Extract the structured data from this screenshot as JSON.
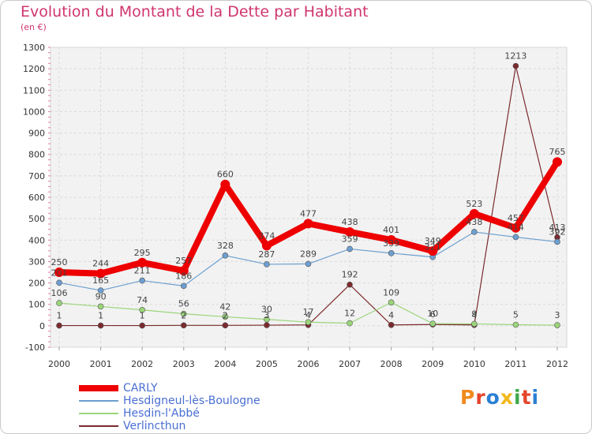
{
  "chart_data": {
    "type": "line",
    "title": "Evolution du Montant de la Dette par Habitant",
    "subtitle": "(en €)",
    "x": [
      "2000",
      "2001",
      "2002",
      "2003",
      "2004",
      "2005",
      "2006",
      "2007",
      "2008",
      "2009",
      "2010",
      "2011",
      "2012"
    ],
    "ylim": [
      -100,
      1300
    ],
    "yticks": [
      -100,
      0,
      100,
      200,
      300,
      400,
      500,
      600,
      700,
      800,
      900,
      1000,
      1100,
      1200,
      1300
    ],
    "ytick_labels": [
      "-100",
      "0",
      "100",
      "200",
      "300",
      "400",
      "500",
      "600",
      "700",
      "800",
      "900",
      "1000",
      "1100",
      "1200",
      "1300"
    ],
    "grid": true,
    "legend_position": "bottom-left",
    "series": [
      {
        "name": "CARLY",
        "color": "#ee0000",
        "values": [
          250,
          244,
          295,
          257,
          660,
          374,
          477,
          438,
          401,
          349,
          523,
          457,
          765
        ],
        "labels": [
          "250",
          "244",
          "295",
          "257",
          "660",
          "374",
          "477",
          "438",
          "401",
          "349",
          "523",
          "457",
          "765"
        ]
      },
      {
        "name": "Hesdigneul-lès-Boulogne",
        "color": "#6d9fd0",
        "values": [
          201,
          165,
          211,
          186,
          328,
          287,
          289,
          359,
          339,
          321,
          438,
          414,
          392
        ],
        "labels": [
          "201",
          "165",
          "211",
          "186",
          "328",
          "287",
          "289",
          "359",
          "339",
          "321",
          "438",
          "414",
          "392"
        ]
      },
      {
        "name": "Hesdin-l'Abbé",
        "color": "#9bd57a",
        "values": [
          106,
          90,
          74,
          56,
          42,
          30,
          17,
          12,
          109,
          10,
          9,
          5,
          3
        ],
        "labels": [
          "106",
          "90",
          "74",
          "56",
          "42",
          "30",
          "17",
          "12",
          "109",
          "10",
          "9",
          "5",
          "3"
        ]
      },
      {
        "name": "Verlincthun",
        "color": "#7b2a2e",
        "values": [
          1,
          1,
          1,
          2,
          2,
          3,
          4,
          192,
          4,
          6,
          4,
          1213,
          413
        ],
        "labels": [
          "1",
          "1",
          "1",
          "2",
          "2",
          "3",
          "4",
          "192",
          "4",
          "6",
          "4",
          "1213",
          "413"
        ]
      }
    ]
  },
  "logo": {
    "text": "Proxiti",
    "letters": [
      {
        "ch": "P",
        "color": "#f08a1c"
      },
      {
        "ch": "r",
        "color": "#e4452b"
      },
      {
        "ch": "o",
        "color": "#2b7fd4"
      },
      {
        "ch": "x",
        "color": "#f2b81d"
      },
      {
        "ch": "i",
        "color": "#3fa84a"
      },
      {
        "ch": "t",
        "color": "#e4452b"
      },
      {
        "ch": "i",
        "color": "#2b7fd4"
      }
    ]
  }
}
